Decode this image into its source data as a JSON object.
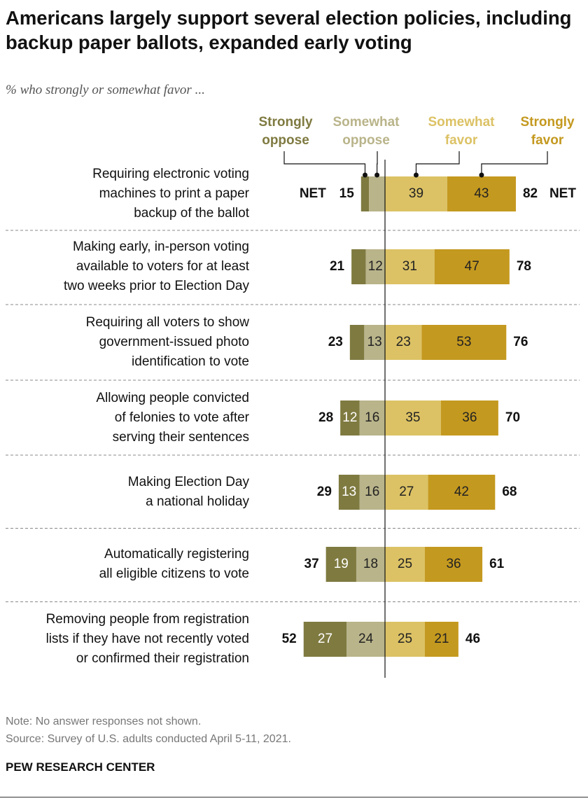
{
  "title": "Americans largely support several election policies, including backup paper ballots, expanded early voting",
  "subtitle": "% who strongly or somewhat favor ...",
  "net_label": "NET",
  "chart_data": {
    "type": "bar",
    "stacked": "diverging",
    "series": [
      {
        "name": "Strongly oppose",
        "color": "#7f7a40"
      },
      {
        "name": "Somewhat oppose",
        "color": "#b9b48a"
      },
      {
        "name": "Somewhat favor",
        "color": "#dcc265"
      },
      {
        "name": "Strongly favor",
        "color": "#c4991f"
      }
    ],
    "categories": [
      "Requiring electronic voting machines to print a paper backup of the ballot",
      "Making early, in-person voting available to voters for at least two weeks prior to Election Day",
      "Requiring all voters to show government-issued photo identification to vote",
      "Allowing people convicted of felonies to vote after serving their sentences",
      "Making Election Day a national holiday",
      "Automatically registering all eligible citizens to vote",
      "Removing people from registration lists if they have not recently voted or confirmed their registration"
    ],
    "label_lines": [
      [
        "Requiring electronic voting",
        "machines to print a paper",
        "backup of the ballot"
      ],
      [
        "Making early, in-person voting",
        "available to voters for at least",
        "two weeks prior to Election Day"
      ],
      [
        "Requiring all voters to show",
        "government-issued photo",
        "identification to vote"
      ],
      [
        "Allowing people convicted",
        "of felonies to vote after",
        "serving their sentences"
      ],
      [
        "Making Election Day",
        "a national holiday"
      ],
      [
        "Automatically registering",
        "all eligible citizens to vote"
      ],
      [
        "Removing people from registration",
        "lists if they have not recently voted",
        "or confirmed their registration"
      ]
    ],
    "values": [
      [
        5,
        10,
        39,
        43
      ],
      [
        9,
        12,
        31,
        47
      ],
      [
        9,
        13,
        23,
        53
      ],
      [
        12,
        16,
        35,
        36
      ],
      [
        13,
        16,
        27,
        42
      ],
      [
        19,
        18,
        25,
        36
      ],
      [
        27,
        24,
        25,
        21
      ]
    ],
    "value_labels_shown": [
      [
        false,
        false,
        true,
        true
      ],
      [
        false,
        true,
        true,
        true
      ],
      [
        false,
        true,
        true,
        true
      ],
      [
        true,
        true,
        true,
        true
      ],
      [
        true,
        true,
        true,
        true
      ],
      [
        true,
        true,
        true,
        true
      ],
      [
        true,
        true,
        true,
        true
      ]
    ],
    "net_oppose": [
      15,
      21,
      23,
      28,
      29,
      37,
      52
    ],
    "net_favor": [
      82,
      78,
      76,
      70,
      68,
      61,
      46
    ]
  },
  "legend": {
    "strongly_oppose": [
      "Strongly",
      "oppose"
    ],
    "somewhat_oppose": [
      "Somewhat",
      "oppose"
    ],
    "somewhat_favor": [
      "Somewhat",
      "favor"
    ],
    "strongly_favor": [
      "Strongly",
      "favor"
    ]
  },
  "note": "Note: No answer responses not shown.",
  "source": "Source: Survey of U.S. adults conducted April 5-11, 2021.",
  "brand": "PEW RESEARCH CENTER"
}
